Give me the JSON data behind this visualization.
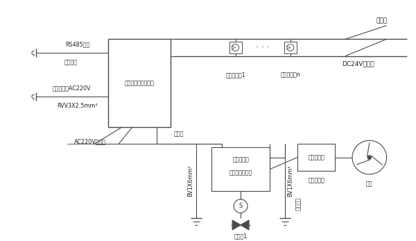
{
  "line_color": "#4a4a4a",
  "text_color": "#222222",
  "controller_label": "可燃气体报警控制器",
  "rs485_label": "RS485接口",
  "reserved_label": "（预留）",
  "fire_power_label": "至消防电源AC220V",
  "rvv_label": "RVV3X2.5mm²",
  "signal_line_label": "信号线",
  "dc24v_label": "DC24V电源线",
  "ac220v_label": "AC220V电源线",
  "bv1x6_label1": "BV1X6mm²",
  "bv1x6_label2": "BV1X6mm²",
  "solenoid_label": "电磁阀1",
  "fan_drive_label": "风机联动盒",
  "fan_label": "风机",
  "detector1_label": "探测报警器1",
  "detectorn_label": "探测报警器n",
  "signal_line_top_label": "信号线",
  "outdoor_label": "室外接地",
  "emv_line1": "电磁联动箱",
  "emv_line2": "（含通信模块）"
}
